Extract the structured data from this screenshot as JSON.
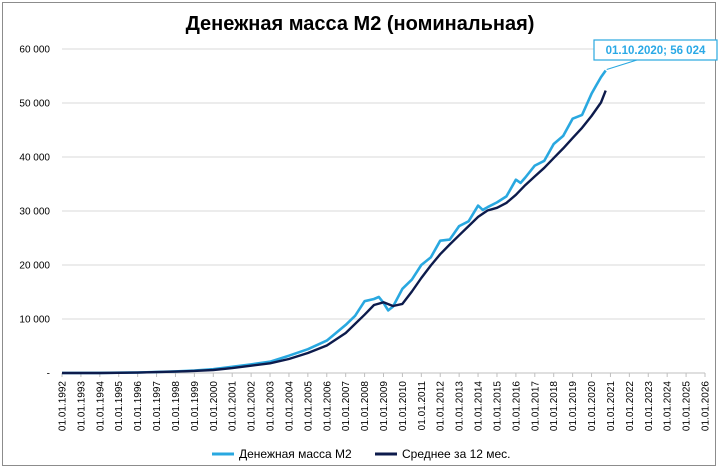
{
  "chart_data": {
    "type": "line",
    "title": "Денежная масса М2 (номинальная)",
    "xlabel": "",
    "ylabel": "",
    "ylim": [
      0,
      60000
    ],
    "yticks": [
      {
        "value": 0,
        "label": "-"
      },
      {
        "value": 10000,
        "label": "10 000"
      },
      {
        "value": 20000,
        "label": "20 000"
      },
      {
        "value": 30000,
        "label": "30 000"
      },
      {
        "value": 40000,
        "label": "40 000"
      },
      {
        "value": 50000,
        "label": "50 000"
      },
      {
        "value": 60000,
        "label": "60 000"
      }
    ],
    "xticks": [
      "01.01.1992",
      "01.01.1993",
      "01.01.1994",
      "01.01.1995",
      "01.01.1996",
      "01.01.1997",
      "01.01.1998",
      "01.01.1999",
      "01.01.2000",
      "01.01.2001",
      "01.01.2002",
      "01.01.2003",
      "01.01.2004",
      "01.01.2005",
      "01.01.2006",
      "01.01.2007",
      "01.01.2008",
      "01.01.2009",
      "01.01.2010",
      "01.01.2011",
      "01.01.2012",
      "01.01.2013",
      "01.01.2014",
      "01.01.2015",
      "01.01.2016",
      "01.01.2017",
      "01.01.2018",
      "01.01.2019",
      "01.01.2020",
      "01.01.2021",
      "01.01.2022",
      "01.01.2023",
      "01.01.2024",
      "01.01.2025",
      "01.01.2026"
    ],
    "grid": true,
    "legend_position": "bottom",
    "series": [
      {
        "name": "Денежная масса М2",
        "color": "#29a8e0",
        "x": [
          "01.01.1992",
          "01.01.1994",
          "01.01.1996",
          "01.01.1998",
          "01.01.1999",
          "01.01.2000",
          "01.01.2001",
          "01.01.2002",
          "01.01.2003",
          "01.01.2004",
          "01.01.2005",
          "01.01.2006",
          "01.01.2007",
          "01.07.2007",
          "01.01.2008",
          "01.07.2008",
          "01.10.2008",
          "01.01.2009",
          "01.04.2009",
          "01.07.2009",
          "01.01.2010",
          "01.07.2010",
          "01.01.2011",
          "01.07.2011",
          "01.01.2012",
          "01.07.2012",
          "01.01.2013",
          "01.07.2013",
          "01.01.2014",
          "01.04.2014",
          "01.07.2014",
          "01.01.2015",
          "01.07.2015",
          "01.01.2016",
          "01.04.2016",
          "01.07.2016",
          "01.01.2017",
          "01.07.2017",
          "01.01.2018",
          "01.07.2018",
          "01.01.2019",
          "01.07.2019",
          "01.01.2020",
          "01.04.2020",
          "01.07.2020",
          "01.10.2020"
        ],
        "values": [
          0,
          10,
          100,
          300,
          450,
          700,
          1150,
          1600,
          2100,
          3200,
          4400,
          6000,
          8900,
          10600,
          13300,
          13700,
          14100,
          13000,
          11600,
          12300,
          15600,
          17300,
          20000,
          21400,
          24500,
          24700,
          27200,
          28100,
          31000,
          30200,
          30700,
          31600,
          32700,
          35800,
          35200,
          36200,
          38400,
          39300,
          42400,
          43900,
          47100,
          47800,
          51700,
          53300,
          54800,
          56024
        ]
      },
      {
        "name": "Среднее за 12 мес.",
        "color": "#0d1b4c",
        "x": [
          "01.01.1992",
          "01.01.1994",
          "01.01.1996",
          "01.01.1998",
          "01.01.1999",
          "01.01.2000",
          "01.01.2001",
          "01.01.2002",
          "01.01.2003",
          "01.01.2004",
          "01.01.2005",
          "01.01.2006",
          "01.01.2007",
          "01.01.2008",
          "01.07.2008",
          "01.01.2009",
          "01.07.2009",
          "01.01.2010",
          "01.07.2010",
          "01.01.2011",
          "01.07.2011",
          "01.01.2012",
          "01.07.2012",
          "01.01.2013",
          "01.07.2013",
          "01.01.2014",
          "01.07.2014",
          "01.01.2015",
          "01.07.2015",
          "01.01.2016",
          "01.07.2016",
          "01.01.2017",
          "01.07.2017",
          "01.01.2018",
          "01.07.2018",
          "01.01.2019",
          "01.07.2019",
          "01.01.2020",
          "01.07.2020",
          "01.10.2020"
        ],
        "values": [
          0,
          5,
          80,
          250,
          380,
          550,
          900,
          1350,
          1800,
          2600,
          3700,
          5100,
          7400,
          10800,
          12600,
          13100,
          12400,
          12800,
          15100,
          17600,
          19900,
          22000,
          23800,
          25500,
          27200,
          28900,
          30100,
          30600,
          31500,
          33000,
          34800,
          36400,
          38000,
          39800,
          41600,
          43500,
          45400,
          47600,
          50100,
          52300
        ]
      }
    ],
    "annotations": [
      {
        "x": "01.10.2020",
        "y": 56024,
        "text": "01.10.2020;  56 024",
        "series": "Денежная масса М2"
      }
    ]
  }
}
